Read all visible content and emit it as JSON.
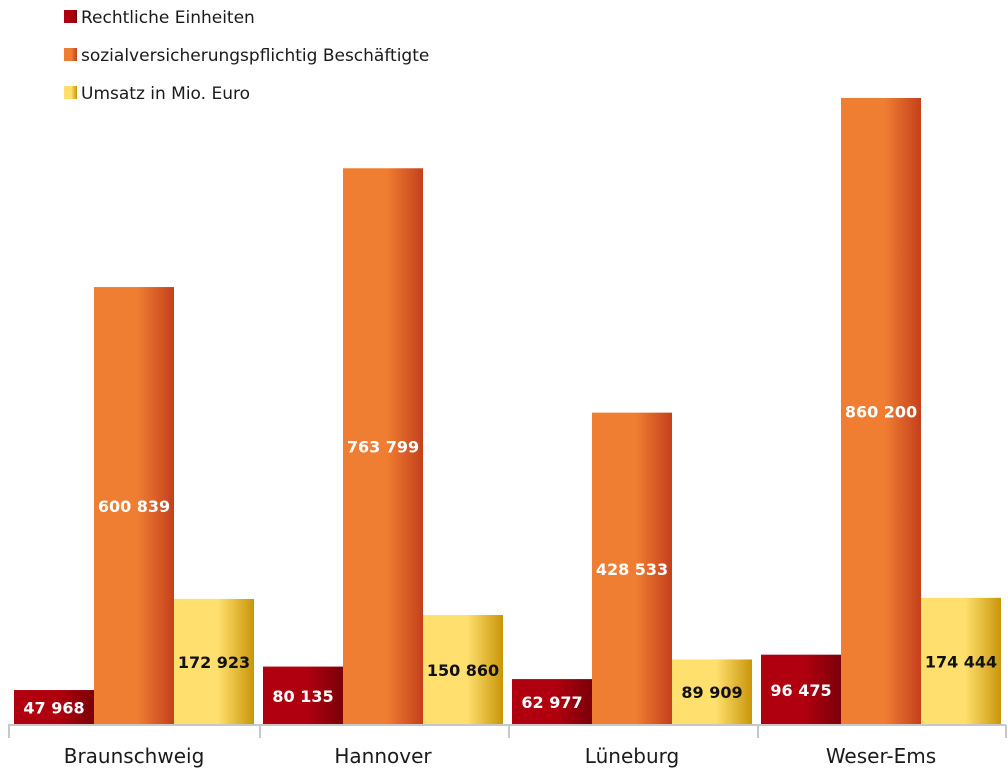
{
  "chart_data": {
    "type": "bar",
    "categories": [
      "Braunschweig",
      "Hannover",
      "Lüneburg",
      "Weser-Ems"
    ],
    "series": [
      {
        "name": "Rechtliche Einheiten",
        "values": [
          47968,
          80135,
          62977,
          96475
        ],
        "labels": [
          "47 968",
          "80 135",
          "62 977",
          "96 475"
        ],
        "color": "#b0000f",
        "color_dark": "#7a0008",
        "label_color": "#ffffff"
      },
      {
        "name": "sozialversicherungspflichtig Beschäftigte",
        "values": [
          600839,
          763799,
          428533,
          860200
        ],
        "labels": [
          "600 839",
          "763 799",
          "428 533",
          "860 200"
        ],
        "color": "#ef7d32",
        "color_dark": "#c4401c",
        "label_color": "#ffffff"
      },
      {
        "name": "Umsatz in Mio. Euro",
        "values": [
          172923,
          150860,
          89909,
          174444
        ],
        "labels": [
          "172 923",
          "150 860",
          "89 909",
          "174 444"
        ],
        "color": "#ffdf6e",
        "color_dark": "#c9960a",
        "label_color": "#111111"
      }
    ],
    "ylim": [
      0,
      860200
    ],
    "grid": false,
    "legend_position": "top-left"
  }
}
